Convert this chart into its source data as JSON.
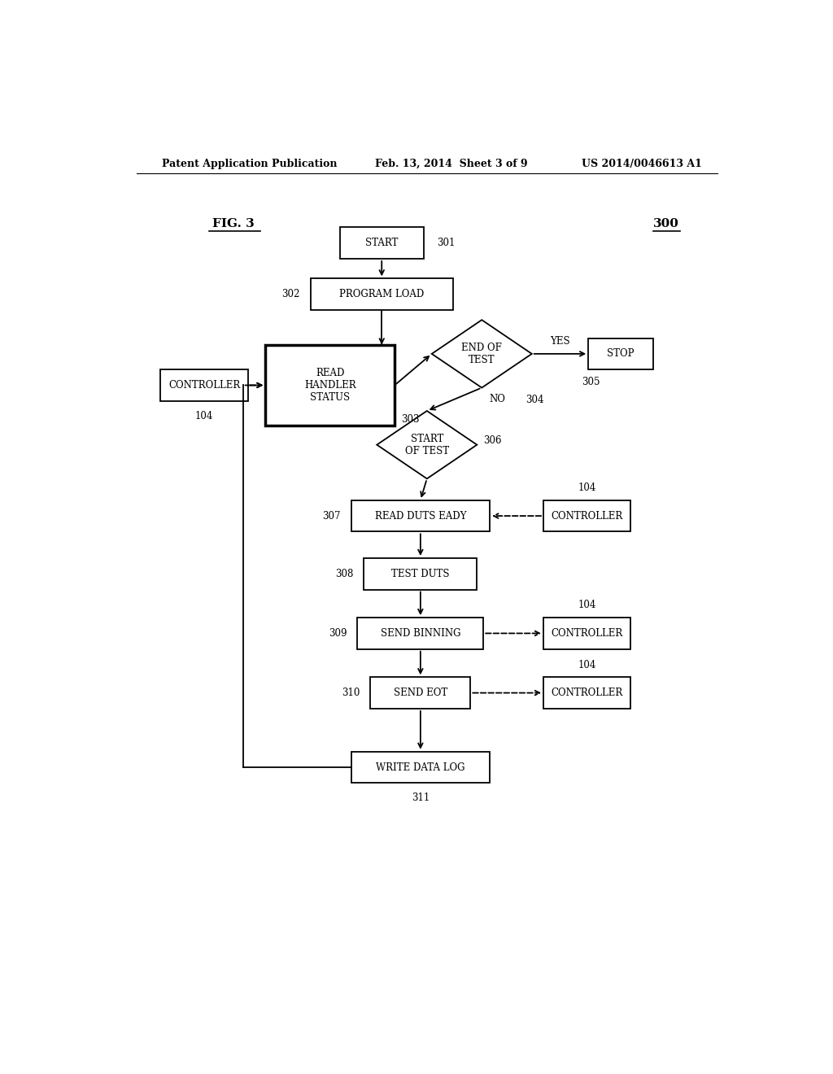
{
  "bg_color": "#ffffff",
  "header_left": "Patent Application Publication",
  "header_center": "Feb. 13, 2014  Sheet 3 of 9",
  "header_right": "US 2014/0046613 A1",
  "fig_label": "FIG. 3",
  "fig_number": "300"
}
